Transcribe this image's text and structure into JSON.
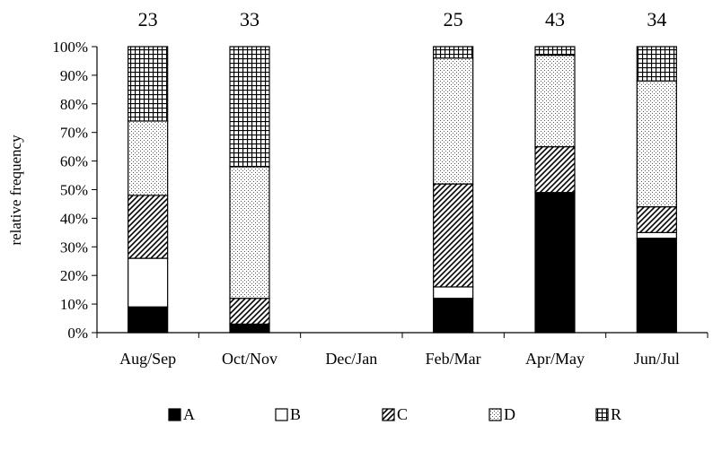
{
  "chart_data": {
    "type": "bar",
    "stacked": true,
    "normalized": true,
    "categories": [
      "Aug/Sep",
      "Oct/Nov",
      "Dec/Jan",
      "Feb/Mar",
      "Apr/May",
      "Jun/Jul"
    ],
    "totals": [
      "23",
      "33",
      "",
      "25",
      "43",
      "34"
    ],
    "ylabel": "relative frequency",
    "ylim": [
      0,
      100
    ],
    "yticks": [
      "0%",
      "10%",
      "20%",
      "30%",
      "40%",
      "50%",
      "60%",
      "70%",
      "80%",
      "90%",
      "100%"
    ],
    "series": [
      {
        "name": "A",
        "pattern": "solid",
        "values": [
          9,
          3,
          null,
          12,
          49,
          33
        ]
      },
      {
        "name": "B",
        "pattern": "blank",
        "values": [
          17,
          0,
          null,
          4,
          0,
          2
        ]
      },
      {
        "name": "C",
        "pattern": "diagonal",
        "values": [
          22,
          9,
          null,
          36,
          16,
          9
        ]
      },
      {
        "name": "D",
        "pattern": "dots",
        "values": [
          26,
          46,
          null,
          44,
          32,
          44
        ]
      },
      {
        "name": "R",
        "pattern": "grid",
        "values": [
          26,
          42,
          null,
          4,
          3,
          12
        ]
      }
    ],
    "legend_position": "bottom",
    "colors": {
      "ink": "#000000",
      "background": "#ffffff"
    }
  }
}
